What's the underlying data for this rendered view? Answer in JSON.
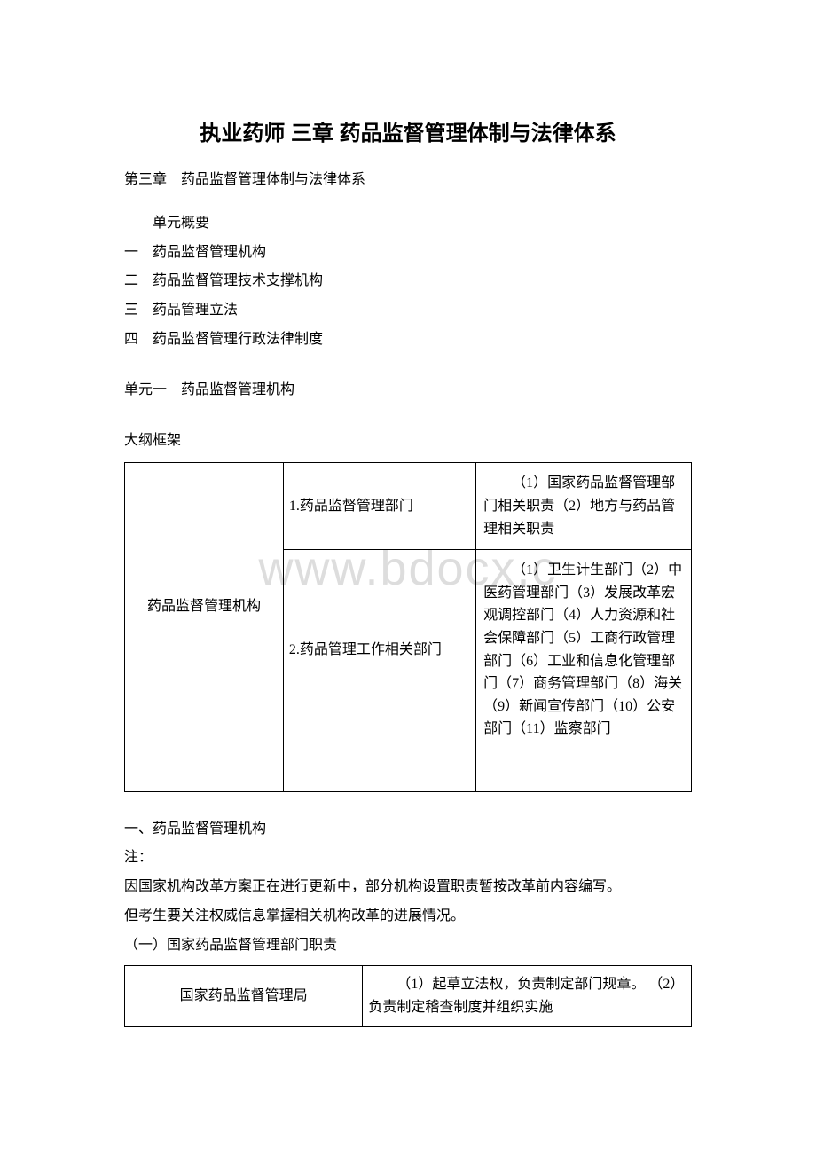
{
  "watermark": "www.bdocx.c",
  "title": "执业药师 三章 药品监督管理体制与法律体系",
  "chapter_line": "第三章　药品监督管理体制与法律体系",
  "unit_overview_label": "单元概要",
  "toc": {
    "i1": "一　药品监督管理机构",
    "i2": "二　药品监督管理技术支撑机构",
    "i3": "三　药品管理立法",
    "i4": "四　药品监督管理行政法律制度"
  },
  "unit1_heading": "单元一　药品监督管理机构",
  "outline_label": "大纲框架",
  "outline_table": {
    "row1": {
      "c1": "药品监督管理机构",
      "c2": "1.药品监督管理部门",
      "c3": "（1）国家药品监督管理部门相关职责（2）地方与药品管理相关职责"
    },
    "row2": {
      "c2": "2.药品管理工作相关部门",
      "c3": "（1）卫生计生部门（2）中医药管理部门（3）发展改革宏观调控部门（4）人力资源和社会保障部门（5）工商行政管理部门（6）工业和信息化管理部门（7）商务管理部门（8）海关（9）新闻宣传部门（10）公安部门（11）监察部门"
    }
  },
  "section1_heading": "一、药品监督管理机构",
  "note_label": "注：",
  "note_line1": "因国家机构改革方案正在进行更新中，部分机构设置职责暂按改革前内容编写。",
  "note_line2": "但考生要关注权威信息掌握相关机构改革的进展情况。",
  "subsection_heading": "（一）国家药品监督管理部门职责",
  "duties_table": {
    "c1": "国家药品监督管理局",
    "c2": "（1）起草立法权，负责制定部门规章。\n（2）负责制定稽查制度并组织实施"
  },
  "colors": {
    "text": "#000000",
    "background": "#ffffff",
    "watermark": "#dddddd",
    "border": "#000000"
  }
}
